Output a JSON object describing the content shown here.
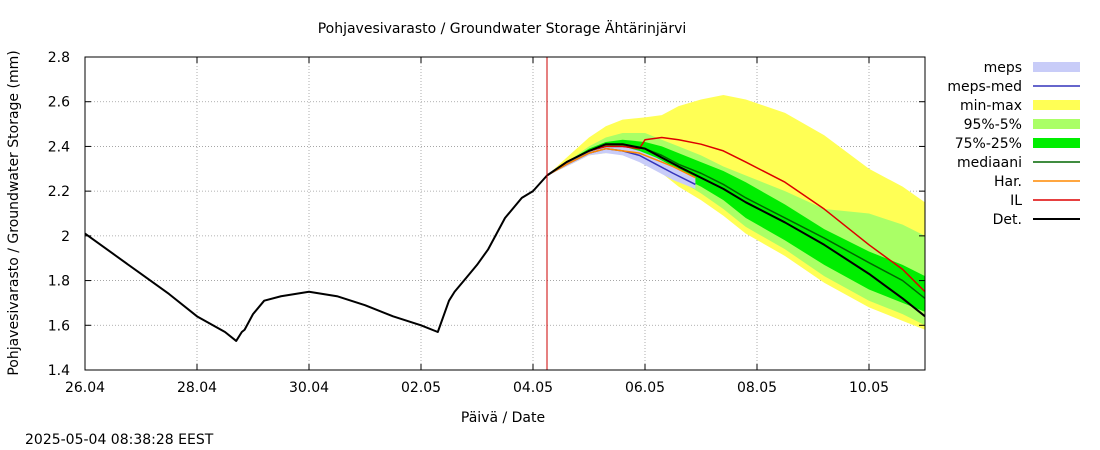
{
  "chart_data": {
    "type": "line",
    "title": "Pohjavesivarasto / Groundwater Storage   Ähtärinjärvi",
    "xlabel": "Päivä / Date",
    "ylabel": "Pohjavesivarasto / Groundwater Storage (mm)",
    "timestamp": "2025-05-04 08:38:28 EEST",
    "x_unit": "days since 26.04",
    "xlim": [
      0,
      15
    ],
    "ylim": [
      1.4,
      2.8
    ],
    "x_ticks": [
      {
        "x": 0,
        "label": "26.04"
      },
      {
        "x": 2,
        "label": "28.04"
      },
      {
        "x": 4,
        "label": "30.04"
      },
      {
        "x": 6,
        "label": "02.05"
      },
      {
        "x": 8,
        "label": "04.05"
      },
      {
        "x": 10,
        "label": "06.05"
      },
      {
        "x": 12,
        "label": "08.05"
      },
      {
        "x": 14,
        "label": "10.05"
      }
    ],
    "y_ticks": [
      1.4,
      1.6,
      1.8,
      2,
      2.2,
      2.4,
      2.6,
      2.8
    ],
    "y_tick_labels": [
      "1.4",
      "1.6",
      "1.8",
      "2",
      "2.2",
      "2.4",
      "2.6",
      "2.8"
    ],
    "grid": true,
    "now_marker_x": 8.25,
    "now_marker_color": "#cc0000",
    "legend_position": "right",
    "legend": [
      {
        "label": "meps",
        "kind": "band",
        "color": "#c8ccf8"
      },
      {
        "label": "meps-med",
        "kind": "line",
        "color": "#3333bb"
      },
      {
        "label": "min-max",
        "kind": "band",
        "color": "#ffff55"
      },
      {
        "label": "95%-5%",
        "kind": "band",
        "color": "#aaff66"
      },
      {
        "label": "75%-25%",
        "kind": "band",
        "color": "#00ee00"
      },
      {
        "label": "mediaani",
        "kind": "line",
        "color": "#006600"
      },
      {
        "label": "Har.",
        "kind": "line",
        "color": "#ff8800"
      },
      {
        "label": "IL",
        "kind": "line",
        "color": "#dd0000"
      },
      {
        "label": "Det.",
        "kind": "line",
        "color": "#000000"
      }
    ],
    "bands": [
      {
        "name": "min-max",
        "color": "#ffff55",
        "x": [
          8.25,
          8.6,
          9.0,
          9.3,
          9.6,
          10.0,
          10.3,
          10.6,
          11.0,
          11.4,
          11.8,
          12.5,
          13.2,
          14.0,
          14.6,
          15.0
        ],
        "upper": [
          2.27,
          2.35,
          2.44,
          2.49,
          2.52,
          2.53,
          2.54,
          2.58,
          2.61,
          2.63,
          2.61,
          2.55,
          2.45,
          2.3,
          2.22,
          2.15
        ],
        "lower": [
          2.27,
          2.31,
          2.36,
          2.37,
          2.37,
          2.35,
          2.28,
          2.22,
          2.16,
          2.09,
          2.01,
          1.91,
          1.79,
          1.68,
          1.62,
          1.58
        ]
      },
      {
        "name": "95%-5%",
        "color": "#aaff66",
        "x": [
          8.25,
          8.6,
          9.0,
          9.3,
          9.6,
          10.0,
          10.3,
          10.6,
          11.0,
          11.4,
          11.8,
          12.5,
          13.2,
          14.0,
          14.6,
          15.0
        ],
        "upper": [
          2.27,
          2.33,
          2.4,
          2.44,
          2.46,
          2.46,
          2.43,
          2.4,
          2.36,
          2.31,
          2.27,
          2.2,
          2.12,
          2.1,
          2.05,
          2.0
        ],
        "lower": [
          2.27,
          2.32,
          2.37,
          2.38,
          2.38,
          2.36,
          2.3,
          2.25,
          2.19,
          2.12,
          2.04,
          1.94,
          1.82,
          1.71,
          1.65,
          1.6
        ]
      },
      {
        "name": "75%-25%",
        "color": "#00ee00",
        "x": [
          8.25,
          8.6,
          9.0,
          9.3,
          9.6,
          10.0,
          10.3,
          10.6,
          11.0,
          11.4,
          11.8,
          12.5,
          13.2,
          14.0,
          14.6,
          15.0
        ],
        "upper": [
          2.27,
          2.33,
          2.39,
          2.42,
          2.43,
          2.42,
          2.4,
          2.37,
          2.33,
          2.29,
          2.24,
          2.14,
          2.03,
          1.93,
          1.87,
          1.82
        ],
        "lower": [
          2.27,
          2.32,
          2.37,
          2.39,
          2.39,
          2.37,
          2.32,
          2.27,
          2.22,
          2.16,
          2.08,
          1.98,
          1.87,
          1.76,
          1.7,
          1.66
        ]
      },
      {
        "name": "meps",
        "color": "#c8ccf8",
        "x": [
          8.25,
          8.6,
          9.0,
          9.3,
          9.6,
          9.9,
          10.2,
          10.5,
          10.9
        ],
        "upper": [
          2.27,
          2.33,
          2.38,
          2.4,
          2.4,
          2.38,
          2.35,
          2.31,
          2.26
        ],
        "lower": [
          2.27,
          2.31,
          2.36,
          2.37,
          2.36,
          2.33,
          2.29,
          2.25,
          2.21
        ]
      }
    ],
    "series": [
      {
        "name": "meps-med",
        "color": "#3333bb",
        "x": [
          8.25,
          8.6,
          9.0,
          9.3,
          9.6,
          9.9,
          10.2,
          10.5,
          10.9
        ],
        "y": [
          2.27,
          2.32,
          2.37,
          2.39,
          2.38,
          2.36,
          2.32,
          2.28,
          2.23
        ]
      },
      {
        "name": "mediaani",
        "color": "#006600",
        "x": [
          8.25,
          8.6,
          9.0,
          9.3,
          9.6,
          10.0,
          10.3,
          10.6,
          11.0,
          11.4,
          11.8,
          12.5,
          13.2,
          14.0,
          14.6,
          15.0
        ],
        "y": [
          2.27,
          2.33,
          2.38,
          2.4,
          2.4,
          2.39,
          2.36,
          2.32,
          2.28,
          2.23,
          2.17,
          2.08,
          1.99,
          1.88,
          1.8,
          1.72
        ]
      },
      {
        "name": "Har.",
        "color": "#ff8800",
        "x": [
          8.25,
          8.6,
          9.0,
          9.3,
          9.6,
          9.9,
          10.2,
          10.5,
          10.9
        ],
        "y": [
          2.27,
          2.32,
          2.37,
          2.39,
          2.38,
          2.37,
          2.34,
          2.31,
          2.26
        ]
      },
      {
        "name": "IL",
        "color": "#dd0000",
        "x": [
          8.25,
          8.6,
          9.0,
          9.3,
          9.6,
          9.9,
          10.0,
          10.3,
          10.6,
          11.0,
          11.4,
          11.8,
          12.5,
          13.2,
          14.0,
          14.6,
          15.0
        ],
        "y": [
          2.27,
          2.33,
          2.38,
          2.4,
          2.4,
          2.39,
          2.43,
          2.44,
          2.43,
          2.41,
          2.38,
          2.33,
          2.24,
          2.12,
          1.96,
          1.85,
          1.75
        ]
      },
      {
        "name": "Det.",
        "color": "#000000",
        "x": [
          0,
          0.5,
          1.0,
          1.5,
          2.0,
          2.5,
          2.7,
          2.8,
          2.85,
          3.0,
          3.2,
          3.5,
          4.0,
          4.5,
          5.0,
          5.5,
          6.0,
          6.3,
          6.5,
          6.6,
          6.8,
          7.0,
          7.2,
          7.5,
          7.8,
          8.0,
          8.25,
          8.6,
          9.0,
          9.3,
          9.6,
          10.0,
          10.3,
          10.6,
          11.0,
          11.4,
          11.8,
          12.5,
          13.2,
          14.0,
          14.6,
          15.0
        ],
        "y": [
          2.01,
          1.92,
          1.83,
          1.74,
          1.64,
          1.57,
          1.53,
          1.57,
          1.58,
          1.65,
          1.71,
          1.73,
          1.75,
          1.73,
          1.69,
          1.64,
          1.6,
          1.57,
          1.71,
          1.75,
          1.81,
          1.87,
          1.94,
          2.08,
          2.17,
          2.2,
          2.27,
          2.33,
          2.38,
          2.41,
          2.41,
          2.39,
          2.35,
          2.31,
          2.26,
          2.21,
          2.15,
          2.06,
          1.96,
          1.83,
          1.72,
          1.64
        ]
      }
    ]
  }
}
